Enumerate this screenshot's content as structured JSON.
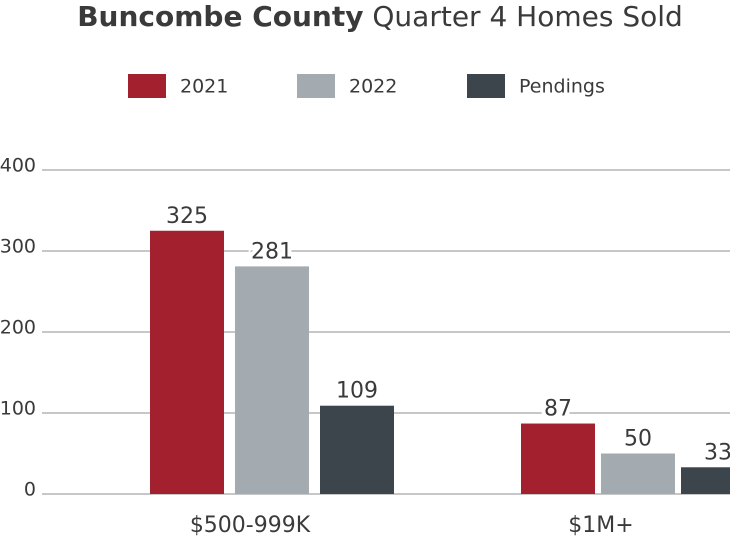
{
  "chart_data": {
    "type": "bar",
    "title": [
      "Buncombe County",
      "Quarter 4 Homes Sold"
    ],
    "categories": [
      "$500-999K",
      "$1M+"
    ],
    "series": [
      {
        "name": "2021",
        "color": "#a3202f",
        "values": [
          325,
          87
        ]
      },
      {
        "name": "2022",
        "color": "#a4abb0",
        "values": [
          281,
          50
        ]
      },
      {
        "name": "Pendings",
        "color": "#3d454c",
        "values": [
          109,
          33
        ]
      }
    ],
    "ylim": [
      0,
      400
    ],
    "yticks": [
      0,
      100,
      200,
      300,
      400
    ],
    "grid": true
  }
}
